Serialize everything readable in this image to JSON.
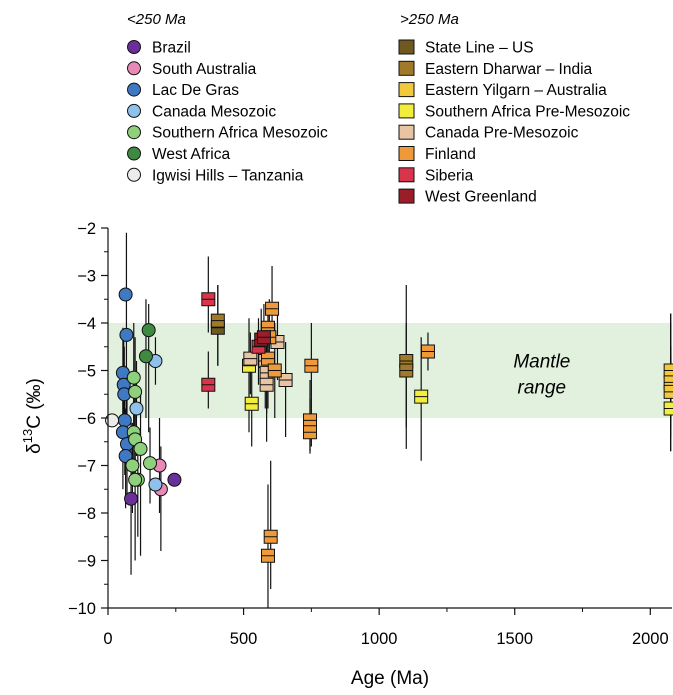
{
  "chart_data": {
    "type": "scatter",
    "xlabel": "Age (Ma)",
    "ylabel_prefix": "δ",
    "ylabel_super": "13",
    "ylabel_suffix": "C (‰)",
    "xlim": [
      0,
      2080
    ],
    "ylim": [
      -10,
      -2
    ],
    "xticks": [
      0,
      500,
      1000,
      1500,
      2000
    ],
    "yticks": [
      -2,
      -3,
      -4,
      -5,
      -6,
      -7,
      -8,
      -9,
      -10
    ],
    "grid": false,
    "shaded_band": {
      "y": [
        -6,
        -4
      ],
      "color": "#e2f0de",
      "label_line1": "Mantle",
      "label_line2": "range",
      "label_x": 1600,
      "label_y": -5
    },
    "legend": {
      "placement": "top",
      "groups": [
        {
          "heading": "<250 Ma",
          "marker": "circle",
          "entries": [
            {
              "name": "Brazil",
              "color": "#6a2f9a"
            },
            {
              "name": "South Australia",
              "color": "#e98ab6"
            },
            {
              "name": "Lac De Gras",
              "color": "#3f78c3"
            },
            {
              "name": "Canada Mesozoic",
              "color": "#8ec2ec"
            },
            {
              "name": "Southern Africa Mesozoic",
              "color": "#8fd07c"
            },
            {
              "name": "West Africa",
              "color": "#3e8a42"
            },
            {
              "name": "Igwisi Hills – Tanzania",
              "color": "#ececec"
            }
          ]
        },
        {
          "heading": ">250 Ma",
          "marker": "square",
          "entries": [
            {
              "name": "State Line – US",
              "color": "#6e5a20"
            },
            {
              "name": "Eastern Dharwar – India",
              "color": "#a07a28"
            },
            {
              "name": "Eastern Yilgarn – Australia",
              "color": "#f2c93c"
            },
            {
              "name": "Southern Africa Pre-Mesozoic",
              "color": "#f2ee3c"
            },
            {
              "name": "Canada Pre-Mesozoic",
              "color": "#e8c4a2"
            },
            {
              "name": "Finland",
              "color": "#ee9a3a"
            },
            {
              "name": "Siberia",
              "color": "#d8344c"
            },
            {
              "name": "West Greenland",
              "color": "#9a1e2a"
            }
          ]
        }
      ]
    },
    "series": [
      {
        "name": "Brazil",
        "marker": "circle",
        "color": "#6a2f9a",
        "points": [
          {
            "x": 85,
            "y": -7.7,
            "lo": -9.3,
            "hi": -6.1
          },
          {
            "x": 245,
            "y": -7.3,
            "lo": -7.3,
            "hi": -7.3
          }
        ]
      },
      {
        "name": "South Australia",
        "marker": "circle",
        "color": "#e98ab6",
        "points": [
          {
            "x": 190,
            "y": -7.0,
            "lo": -8.0,
            "hi": -6.0
          },
          {
            "x": 195,
            "y": -7.5,
            "lo": -8.8,
            "hi": -6.6
          }
        ]
      },
      {
        "name": "Lac De Gras",
        "marker": "circle",
        "color": "#3f78c3",
        "points": [
          {
            "x": 65,
            "y": -3.4,
            "lo": -3.4,
            "hi": -3.4
          },
          {
            "x": 68,
            "y": -4.25,
            "lo": -6.0,
            "hi": -2.1
          },
          {
            "x": 55,
            "y": -5.05,
            "lo": -6.3,
            "hi": -4.1
          },
          {
            "x": 58,
            "y": -5.3,
            "lo": -6.5,
            "hi": -4.3
          },
          {
            "x": 60,
            "y": -5.5,
            "lo": -6.6,
            "hi": -4.5
          },
          {
            "x": 62,
            "y": -6.05,
            "lo": -7.2,
            "hi": -4.9
          },
          {
            "x": 55,
            "y": -6.3,
            "lo": -7.5,
            "hi": -5.2
          },
          {
            "x": 70,
            "y": -6.55,
            "lo": -7.6,
            "hi": -5.5
          },
          {
            "x": 65,
            "y": -6.8,
            "lo": -7.9,
            "hi": -5.8
          }
        ]
      },
      {
        "name": "Canada Mesozoic",
        "marker": "circle",
        "color": "#8ec2ec",
        "points": [
          {
            "x": 175,
            "y": -4.8,
            "lo": -5.3,
            "hi": -4.3
          },
          {
            "x": 105,
            "y": -5.8,
            "lo": -6.8,
            "hi": -4.8
          },
          {
            "x": 175,
            "y": -7.4,
            "lo": -7.4,
            "hi": -7.4
          }
        ]
      },
      {
        "name": "Southern Africa Mesozoic",
        "marker": "circle",
        "color": "#8fd07c",
        "points": [
          {
            "x": 95,
            "y": -5.15,
            "lo": -6.3,
            "hi": -4.0
          },
          {
            "x": 100,
            "y": -5.45,
            "lo": -6.6,
            "hi": -4.3
          },
          {
            "x": 95,
            "y": -6.3,
            "lo": -7.2,
            "hi": -5.4
          },
          {
            "x": 100,
            "y": -6.45,
            "lo": -7.3,
            "hi": -5.6
          },
          {
            "x": 120,
            "y": -6.65,
            "lo": -8.9,
            "hi": -5.5
          },
          {
            "x": 90,
            "y": -7.0,
            "lo": -8.0,
            "hi": -6.1
          },
          {
            "x": 110,
            "y": -7.3,
            "lo": -8.5,
            "hi": -6.5
          },
          {
            "x": 155,
            "y": -6.95,
            "lo": -7.8,
            "hi": -6.2
          },
          {
            "x": 100,
            "y": -7.3,
            "lo": -9.0,
            "hi": -6.3
          }
        ]
      },
      {
        "name": "West Africa",
        "marker": "circle",
        "color": "#3e8a42",
        "points": [
          {
            "x": 150,
            "y": -4.15,
            "lo": -6.3,
            "hi": -3.6
          },
          {
            "x": 140,
            "y": -4.7,
            "lo": -6.0,
            "hi": -3.5
          }
        ]
      },
      {
        "name": "Igwisi Hills – Tanzania",
        "marker": "circle",
        "color": "#ececec",
        "points": [
          {
            "x": 15,
            "y": -6.05,
            "lo": -6.05,
            "hi": -6.05
          }
        ]
      },
      {
        "name": "State Line – US",
        "marker": "square",
        "color": "#6e5a20",
        "points": [
          {
            "x": 405,
            "y": -4.1,
            "lo": -4.9,
            "hi": -3.2
          }
        ]
      },
      {
        "name": "Eastern Dharwar – India",
        "marker": "square",
        "color": "#a07a28",
        "points": [
          {
            "x": 405,
            "y": -3.95,
            "lo": -4.9,
            "hi": -3.2
          },
          {
            "x": 1100,
            "y": -4.8,
            "lo": -6.65,
            "hi": -3.2
          },
          {
            "x": 1100,
            "y": -5.0,
            "lo": -6.2,
            "hi": -4.0
          }
        ]
      },
      {
        "name": "Eastern Yilgarn – Australia",
        "marker": "square",
        "color": "#f2c93c",
        "points": [
          {
            "x": 2075,
            "y": -5.0,
            "lo": -6.2,
            "hi": -3.8
          },
          {
            "x": 2075,
            "y": -5.25,
            "lo": -6.7,
            "hi": -3.8
          },
          {
            "x": 2075,
            "y": -5.45,
            "lo": -6.4,
            "hi": -4.5
          }
        ]
      },
      {
        "name": "Southern Africa Pre-Mesozoic",
        "marker": "square",
        "color": "#f2ee3c",
        "points": [
          {
            "x": 520,
            "y": -4.9,
            "lo": -6.3,
            "hi": -3.9
          },
          {
            "x": 530,
            "y": -5.7,
            "lo": -6.6,
            "hi": -4.8
          },
          {
            "x": 1155,
            "y": -5.55,
            "lo": -6.9,
            "hi": -4.3
          },
          {
            "x": 2075,
            "y": -5.8,
            "lo": -6.7,
            "hi": -4.7
          }
        ]
      },
      {
        "name": "Canada Pre-Mesozoic",
        "marker": "square",
        "color": "#e8c4a2",
        "points": [
          {
            "x": 525,
            "y": -4.75,
            "lo": -5.5,
            "hi": -4.2
          },
          {
            "x": 580,
            "y": -4.8,
            "lo": -5.8,
            "hi": -4.0
          },
          {
            "x": 585,
            "y": -5.05,
            "lo": -5.9,
            "hi": -4.4
          },
          {
            "x": 585,
            "y": -5.3,
            "lo": -6.5,
            "hi": -4.4
          },
          {
            "x": 625,
            "y": -4.4,
            "lo": -5.2,
            "hi": -3.8
          },
          {
            "x": 655,
            "y": -5.2,
            "lo": -6.4,
            "hi": -4.4
          }
        ]
      },
      {
        "name": "Finland",
        "marker": "square",
        "color": "#ee9a3a",
        "points": [
          {
            "x": 605,
            "y": -3.7,
            "lo": -4.5,
            "hi": -2.8
          },
          {
            "x": 590,
            "y": -4.1,
            "lo": -4.6,
            "hi": -3.6
          },
          {
            "x": 595,
            "y": -4.3,
            "lo": -5.0,
            "hi": -3.5
          },
          {
            "x": 590,
            "y": -4.75,
            "lo": -5.8,
            "hi": -4.0
          },
          {
            "x": 615,
            "y": -5.0,
            "lo": -6.0,
            "hi": -4.0
          },
          {
            "x": 750,
            "y": -4.9,
            "lo": -6.6,
            "hi": -4.0
          },
          {
            "x": 745,
            "y": -6.05,
            "lo": -6.7,
            "hi": -5.2
          },
          {
            "x": 745,
            "y": -6.3,
            "lo": -6.75,
            "hi": -5.6
          },
          {
            "x": 1180,
            "y": -4.6,
            "lo": -5.0,
            "hi": -4.2
          },
          {
            "x": 600,
            "y": -8.5,
            "lo": -9.6,
            "hi": -6.9
          },
          {
            "x": 590,
            "y": -8.9,
            "lo": -10.0,
            "hi": -7.4
          }
        ]
      },
      {
        "name": "Siberia",
        "marker": "square",
        "color": "#d8344c",
        "points": [
          {
            "x": 370,
            "y": -3.5,
            "lo": -4.2,
            "hi": -2.6
          },
          {
            "x": 370,
            "y": -5.3,
            "lo": -5.8,
            "hi": -4.6
          },
          {
            "x": 555,
            "y": -4.5,
            "lo": -5.3,
            "hi": -3.9
          }
        ]
      },
      {
        "name": "West Greenland",
        "marker": "square",
        "color": "#9a1e2a",
        "points": [
          {
            "x": 565,
            "y": -4.35,
            "lo": -5.1,
            "hi": -3.7
          },
          {
            "x": 575,
            "y": -4.3,
            "lo": -4.9,
            "hi": -3.6
          }
        ]
      }
    ]
  }
}
